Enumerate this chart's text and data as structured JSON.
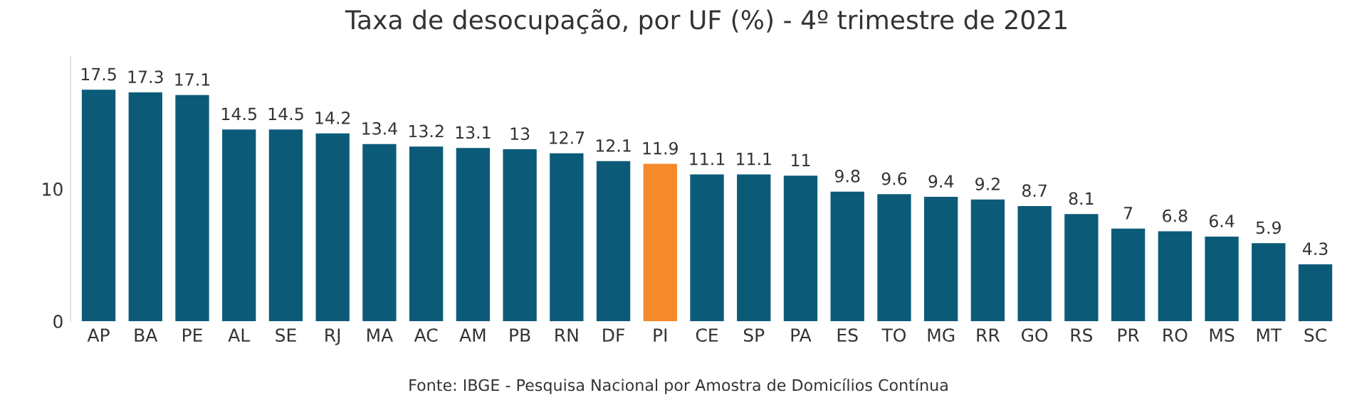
{
  "chart_data": {
    "type": "bar",
    "title": "Taxa de desocupação, por UF (%) - 4º trimestre de 2021",
    "categories": [
      "AP",
      "BA",
      "PE",
      "AL",
      "SE",
      "RJ",
      "MA",
      "AC",
      "AM",
      "PB",
      "RN",
      "DF",
      "PI",
      "CE",
      "SP",
      "PA",
      "ES",
      "TO",
      "MG",
      "RR",
      "GO",
      "RS",
      "PR",
      "RO",
      "MS",
      "MT",
      "SC"
    ],
    "values": [
      17.5,
      17.3,
      17.1,
      14.5,
      14.5,
      14.2,
      13.4,
      13.2,
      13.1,
      13,
      12.7,
      12.1,
      11.9,
      11.1,
      11.1,
      11,
      9.8,
      9.6,
      9.4,
      9.2,
      8.7,
      8.1,
      7,
      6.8,
      6.4,
      5.9,
      4.3
    ],
    "colors": [
      "#0b5b78",
      "#0b5b78",
      "#0b5b78",
      "#0b5b78",
      "#0b5b78",
      "#0b5b78",
      "#0b5b78",
      "#0b5b78",
      "#0b5b78",
      "#0b5b78",
      "#0b5b78",
      "#0b5b78",
      "#f5892c",
      "#0b5b78",
      "#0b5b78",
      "#0b5b78",
      "#0b5b78",
      "#0b5b78",
      "#0b5b78",
      "#0b5b78",
      "#0b5b78",
      "#0b5b78",
      "#0b5b78",
      "#0b5b78",
      "#0b5b78",
      "#0b5b78",
      "#0b5b78"
    ],
    "ylim": [
      0,
      20
    ],
    "yticks": [
      0,
      10
    ],
    "data_labels": true,
    "grid": false,
    "legend": false,
    "annotations": [
      "Fonte: IBGE - Pesquisa Nacional por Amostra de Domicílios Contínua"
    ]
  }
}
